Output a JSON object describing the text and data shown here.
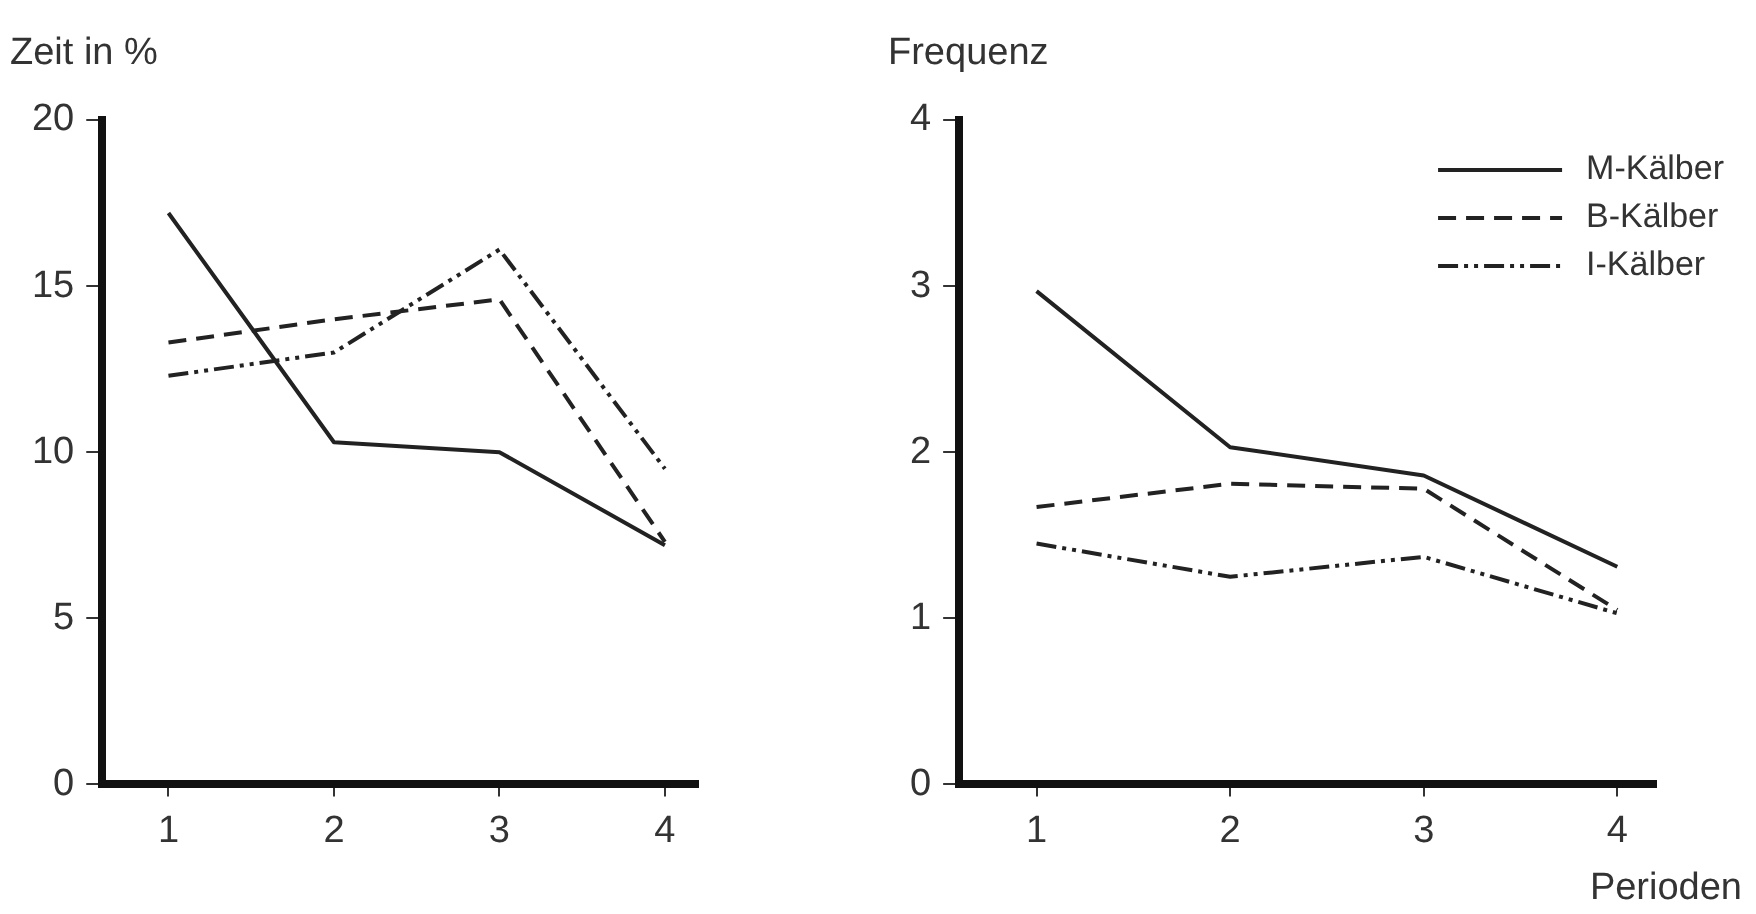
{
  "chart_data": [
    {
      "type": "line",
      "ylabel": "Zeit in %",
      "x": [
        1,
        2,
        3,
        4
      ],
      "xlim": [
        0.6,
        4.2
      ],
      "xticks": [
        1,
        2,
        3,
        4
      ],
      "ylim": [
        0,
        20
      ],
      "yticks": [
        0,
        5,
        10,
        15,
        20
      ],
      "grid": false,
      "legend": false,
      "marker": "none",
      "series": [
        {
          "color": "#222222",
          "line_style": "solid",
          "values": [
            17.2,
            10.3,
            10.0,
            7.2
          ]
        },
        {
          "color": "#222222",
          "line_style": "dashed",
          "values": [
            13.3,
            14.0,
            14.6,
            7.3
          ]
        },
        {
          "color": "#222222",
          "line_style": "dotted",
          "values": [
            12.3,
            13.0,
            16.1,
            9.5
          ]
        }
      ]
    },
    {
      "type": "line",
      "ylabel": "Frequenz",
      "xlabel": "Perioden",
      "x": [
        1,
        2,
        3,
        4
      ],
      "xlim": [
        0.6,
        4.2
      ],
      "xticks": [
        1,
        2,
        3,
        4
      ],
      "ylim": [
        0,
        4
      ],
      "yticks": [
        0,
        1,
        2,
        3,
        4
      ],
      "grid": false,
      "legend": "top right",
      "marker": "none",
      "series": [
        {
          "name": "M-Kälber",
          "color": "#222222",
          "line_style": "solid",
          "values": [
            2.97,
            2.03,
            1.86,
            1.31
          ]
        },
        {
          "name": "B-Kälber",
          "color": "#222222",
          "line_style": "dashed",
          "values": [
            1.67,
            1.81,
            1.78,
            1.05
          ]
        },
        {
          "name": "I-Kälber",
          "color": "#222222",
          "line_style": "dotted",
          "values": [
            1.45,
            1.25,
            1.37,
            1.03
          ]
        }
      ]
    }
  ]
}
